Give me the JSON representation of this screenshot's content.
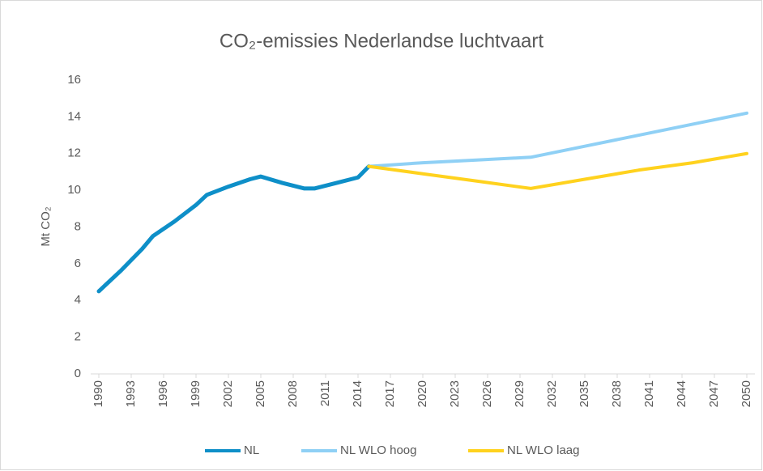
{
  "chart_data": {
    "type": "line",
    "title": "CO₂-emissies Nederlandse luchtvaart",
    "y_label": "Mt CO₂",
    "x": [
      1990,
      1992,
      1994,
      1995,
      1997,
      1999,
      2000,
      2002,
      2004,
      2005,
      2007,
      2009,
      2010,
      2012,
      2014,
      2015,
      2020,
      2025,
      2030,
      2035,
      2040,
      2045,
      2050
    ],
    "series": [
      {
        "name": "NL",
        "color": "#0e8fc8",
        "values": [
          4.5,
          5.6,
          6.8,
          7.5,
          8.3,
          9.2,
          9.75,
          10.2,
          10.6,
          10.75,
          10.4,
          10.1,
          10.1,
          10.4,
          10.7,
          11.3,
          null,
          null,
          null,
          null,
          null,
          null,
          null
        ]
      },
      {
        "name": "NL WLO hoog",
        "color": "#8fd0f5",
        "values": [
          null,
          null,
          null,
          null,
          null,
          null,
          null,
          null,
          null,
          null,
          null,
          null,
          null,
          null,
          null,
          11.3,
          11.5,
          11.65,
          11.8,
          12.4,
          13.0,
          13.6,
          14.2
        ]
      },
      {
        "name": "NL WLO laag",
        "color": "#ffd21e",
        "values": [
          null,
          null,
          null,
          null,
          null,
          null,
          null,
          null,
          null,
          null,
          null,
          null,
          null,
          null,
          null,
          11.3,
          10.9,
          10.5,
          10.1,
          10.6,
          11.1,
          11.5,
          12.0
        ]
      }
    ],
    "xlim": [
      1990,
      2050
    ],
    "xticks": [
      1990,
      1993,
      1996,
      1999,
      2002,
      2005,
      2008,
      2011,
      2014,
      2017,
      2020,
      2023,
      2026,
      2029,
      2032,
      2035,
      2038,
      2041,
      2044,
      2047,
      2050
    ],
    "ylim": [
      0,
      16
    ],
    "yticks": [
      0,
      2,
      4,
      6,
      8,
      10,
      12,
      14,
      16
    ],
    "grid": false,
    "legend": "bottom"
  }
}
